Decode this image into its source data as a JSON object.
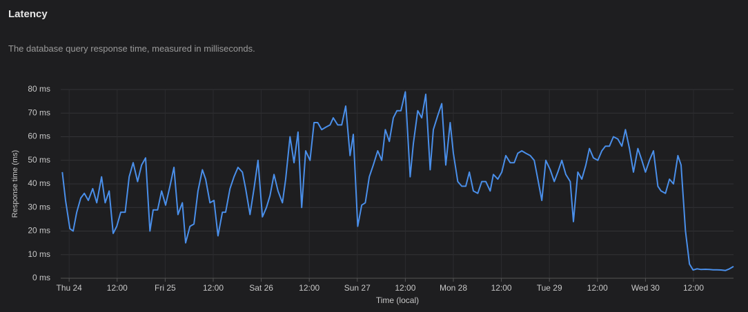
{
  "chart_data": {
    "type": "line",
    "title": "Latency",
    "subtitle": "The database query response time, measured in milliseconds.",
    "x_label": "Time (local)",
    "y_label": "Response time (ms)",
    "xlim": [
      -2.1,
      166
    ],
    "xticks": [
      {
        "value": 0,
        "label": "Thu 24"
      },
      {
        "value": 12,
        "label": "12:00"
      },
      {
        "value": 24,
        "label": "Fri 25"
      },
      {
        "value": 36,
        "label": "12:00"
      },
      {
        "value": 48,
        "label": "Sat 26"
      },
      {
        "value": 60,
        "label": "12:00"
      },
      {
        "value": 72,
        "label": "Sun 27"
      },
      {
        "value": 84,
        "label": "12:00"
      },
      {
        "value": 96,
        "label": "Mon 28"
      },
      {
        "value": 108,
        "label": "12:00"
      },
      {
        "value": 120,
        "label": "Tue 29"
      },
      {
        "value": 132,
        "label": "12:00"
      },
      {
        "value": 144,
        "label": "Wed 30"
      },
      {
        "value": 156,
        "label": "12:00"
      }
    ],
    "ylim": [
      0,
      80
    ],
    "yticks": [
      {
        "value": 0,
        "label": "0 ms"
      },
      {
        "value": 10,
        "label": "10 ms"
      },
      {
        "value": 20,
        "label": "20 ms"
      },
      {
        "value": 30,
        "label": "30 ms"
      },
      {
        "value": 40,
        "label": "40 ms"
      },
      {
        "value": 50,
        "label": "50 ms"
      },
      {
        "value": 60,
        "label": "60 ms"
      },
      {
        "value": 70,
        "label": "70 ms"
      },
      {
        "value": 80,
        "label": "80 ms"
      }
    ],
    "grid": true,
    "x": [
      -1.7,
      -0.9,
      0.2,
      1.0,
      1.9,
      2.9,
      3.8,
      4.8,
      5.9,
      6.9,
      8.1,
      9.0,
      10.0,
      11.0,
      11.9,
      12.9,
      14.0,
      15.0,
      16.0,
      17.1,
      18.1,
      19.1,
      20.2,
      21.0,
      22.1,
      23.1,
      24.1,
      25.2,
      26.2,
      27.2,
      28.3,
      29.1,
      30.2,
      31.2,
      32.2,
      33.3,
      34.1,
      35.2,
      36.2,
      37.2,
      38.3,
      39.1,
      40.2,
      41.2,
      42.2,
      43.3,
      44.1,
      45.2,
      46.2,
      47.2,
      48.3,
      49.3,
      50.2,
      51.2,
      52.2,
      53.3,
      54.1,
      55.2,
      56.2,
      57.2,
      58.1,
      59.1,
      60.2,
      61.2,
      62.1,
      63.1,
      64.1,
      65.2,
      66.0,
      67.1,
      68.1,
      69.1,
      70.2,
      71.0,
      72.1,
      73.1,
      74.0,
      75.0,
      76.0,
      77.1,
      78.1,
      79.0,
      80.0,
      81.0,
      81.9,
      82.9,
      84.0,
      85.2,
      86.0,
      87.1,
      88.1,
      89.1,
      90.2,
      91.0,
      92.1,
      93.1,
      94.1,
      95.2,
      96.0,
      97.1,
      98.1,
      99.1,
      100.0,
      101.0,
      102.1,
      103.1,
      104.1,
      105.2,
      106.0,
      107.1,
      108.1,
      109.1,
      110.2,
      111.2,
      112.1,
      113.1,
      114.1,
      115.2,
      116.2,
      117.1,
      118.1,
      119.1,
      120.2,
      121.2,
      122.1,
      123.1,
      124.1,
      125.2,
      126.0,
      127.1,
      128.1,
      129.1,
      130.0,
      131.0,
      132.1,
      133.1,
      134.0,
      135.0,
      136.0,
      137.1,
      138.1,
      139.0,
      140.0,
      141.0,
      142.1,
      143.1,
      144.0,
      145.0,
      146.0,
      147.1,
      147.9,
      149.0,
      150.0,
      151.0,
      152.1,
      152.9,
      154.0,
      155.0,
      155.9,
      156.9,
      157.9,
      159.0,
      160.0,
      160.9,
      161.9,
      162.9,
      164.0,
      165.0,
      166.0
    ],
    "series": [
      {
        "color": "#4a8fea",
        "values": [
          45,
          33,
          21,
          20,
          28,
          34,
          36,
          33,
          38,
          32,
          43,
          32,
          37,
          19,
          22,
          28,
          28,
          43,
          49,
          41,
          48,
          51,
          20,
          29,
          29,
          37,
          31,
          39,
          47,
          27,
          32,
          15,
          22,
          23,
          37,
          46,
          42,
          32,
          33,
          18,
          28,
          28,
          38,
          43,
          47,
          45,
          38,
          27,
          38,
          50,
          26,
          30,
          35,
          44,
          37,
          32,
          42,
          60,
          49,
          62,
          30,
          54,
          50,
          66,
          66,
          63,
          64,
          65,
          68,
          65,
          65,
          73,
          52,
          61,
          22,
          31,
          32,
          43,
          48,
          54,
          50,
          63,
          58,
          68,
          71,
          71,
          79,
          43,
          57,
          71,
          68,
          78,
          46,
          63,
          69,
          74,
          48,
          66,
          53,
          41,
          39,
          39,
          45,
          37,
          36,
          41,
          41,
          37,
          44,
          42,
          45,
          52,
          49,
          49,
          53,
          54,
          53,
          52,
          50,
          42,
          33,
          50,
          46,
          41,
          45,
          50,
          44,
          41,
          24,
          45,
          42,
          48,
          55,
          51,
          50,
          54,
          56,
          56,
          60,
          59,
          56,
          63,
          55,
          45,
          55,
          50,
          45,
          50,
          54,
          39,
          37,
          36,
          42,
          40,
          52,
          48,
          20,
          6,
          3.5,
          4,
          3.7,
          3.8,
          3.7,
          3.6,
          3.6,
          3.5,
          3.3,
          4,
          5
        ]
      }
    ]
  }
}
